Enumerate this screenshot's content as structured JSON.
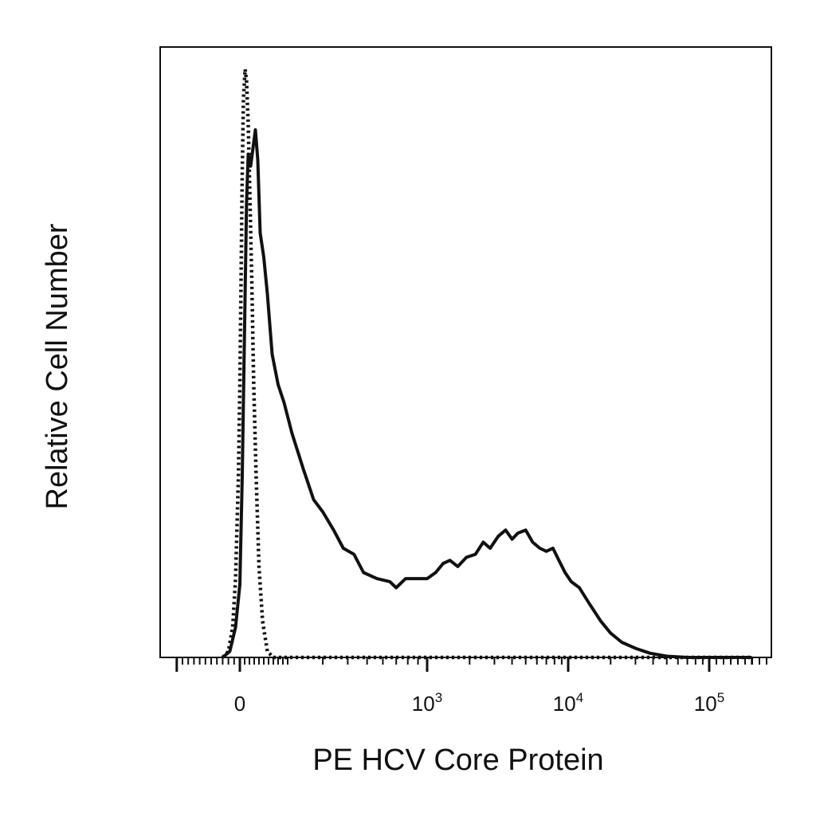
{
  "chart_data": {
    "type": "line",
    "title": "",
    "xlabel": "PE HCV Core Protein",
    "ylabel": "Relative Cell Number",
    "x_scale": "biexponential",
    "xlim": [
      -200,
      200000
    ],
    "ylim": [
      0,
      1.0
    ],
    "grid": false,
    "legend": "none",
    "x_ticks": [
      {
        "value": 0,
        "base": "0",
        "exp": ""
      },
      {
        "value": 1000,
        "base": "10",
        "exp": "3"
      },
      {
        "value": 10000,
        "base": "10",
        "exp": "4"
      },
      {
        "value": 100000,
        "base": "10",
        "exp": "5"
      }
    ],
    "series": [
      {
        "style": "dotted",
        "points": [
          [
            -60,
            0
          ],
          [
            -40,
            0.01
          ],
          [
            -25,
            0.05
          ],
          [
            -15,
            0.13
          ],
          [
            -5,
            0.3
          ],
          [
            0,
            0.45
          ],
          [
            5,
            0.62
          ],
          [
            10,
            0.8
          ],
          [
            15,
            0.92
          ],
          [
            22,
            0.97
          ],
          [
            28,
            0.95
          ],
          [
            35,
            0.88
          ],
          [
            42,
            0.76
          ],
          [
            50,
            0.62
          ],
          [
            58,
            0.45
          ],
          [
            68,
            0.3
          ],
          [
            80,
            0.15
          ],
          [
            95,
            0.06
          ],
          [
            115,
            0.01
          ],
          [
            140,
            0
          ],
          [
            200000,
            0
          ]
        ]
      },
      {
        "style": "solid",
        "points": [
          [
            -60,
            0
          ],
          [
            -35,
            0.01
          ],
          [
            -15,
            0.05
          ],
          [
            0,
            0.12
          ],
          [
            10,
            0.3
          ],
          [
            20,
            0.55
          ],
          [
            28,
            0.75
          ],
          [
            35,
            0.83
          ],
          [
            45,
            0.81
          ],
          [
            55,
            0.84
          ],
          [
            65,
            0.87
          ],
          [
            75,
            0.82
          ],
          [
            85,
            0.7
          ],
          [
            100,
            0.66
          ],
          [
            115,
            0.6
          ],
          [
            135,
            0.5
          ],
          [
            160,
            0.45
          ],
          [
            185,
            0.42
          ],
          [
            210,
            0.37
          ],
          [
            240,
            0.31
          ],
          [
            270,
            0.26
          ],
          [
            300,
            0.24
          ],
          [
            340,
            0.21
          ],
          [
            380,
            0.18
          ],
          [
            430,
            0.17
          ],
          [
            480,
            0.14
          ],
          [
            560,
            0.13
          ],
          [
            650,
            0.125
          ],
          [
            700,
            0.115
          ],
          [
            780,
            0.13
          ],
          [
            900,
            0.13
          ],
          [
            1000,
            0.13
          ],
          [
            1150,
            0.14
          ],
          [
            1300,
            0.155
          ],
          [
            1450,
            0.16
          ],
          [
            1650,
            0.15
          ],
          [
            1900,
            0.165
          ],
          [
            2200,
            0.17
          ],
          [
            2500,
            0.19
          ],
          [
            2800,
            0.18
          ],
          [
            3200,
            0.2
          ],
          [
            3600,
            0.21
          ],
          [
            4000,
            0.195
          ],
          [
            4400,
            0.205
          ],
          [
            5000,
            0.21
          ],
          [
            5600,
            0.19
          ],
          [
            6300,
            0.18
          ],
          [
            7000,
            0.175
          ],
          [
            7800,
            0.18
          ],
          [
            8600,
            0.16
          ],
          [
            9500,
            0.14
          ],
          [
            10500,
            0.125
          ],
          [
            12000,
            0.115
          ],
          [
            14000,
            0.09
          ],
          [
            17000,
            0.06
          ],
          [
            20000,
            0.04
          ],
          [
            24000,
            0.025
          ],
          [
            30000,
            0.015
          ],
          [
            38000,
            0.007
          ],
          [
            50000,
            0.002
          ],
          [
            70000,
            0
          ],
          [
            200000,
            0
          ]
        ]
      }
    ]
  }
}
